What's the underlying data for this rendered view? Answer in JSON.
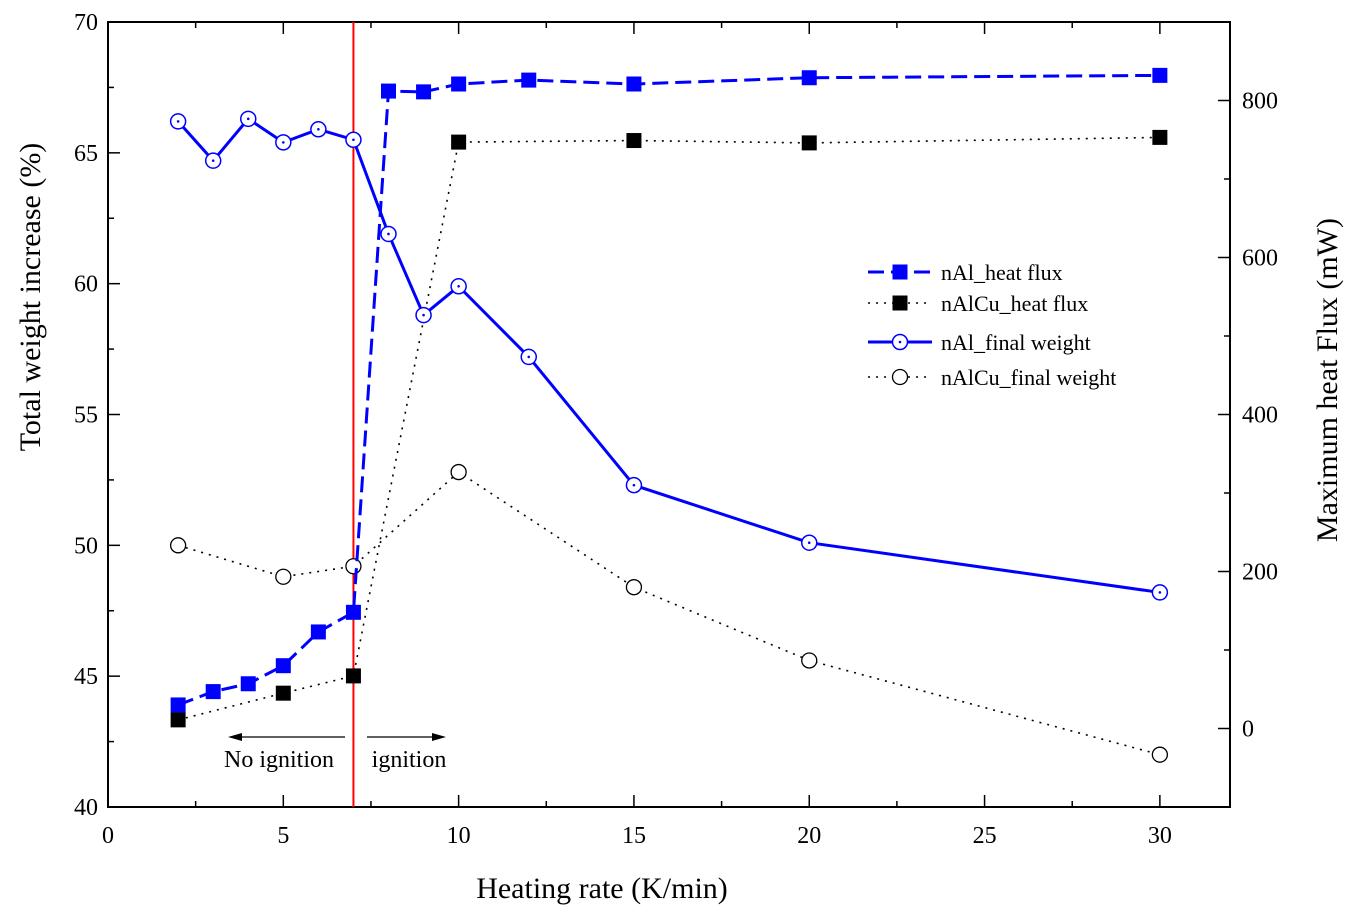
{
  "chart_data": {
    "type": "line",
    "title": "",
    "xlabel": "Heating rate (K/min)",
    "ylabel_left": "Total weight increase (%)",
    "ylabel_right": "Maximum heat Flux (mW)",
    "xlim": [
      0,
      32
    ],
    "ylim_left": [
      40,
      70
    ],
    "ylim_right": [
      -100,
      900
    ],
    "x_ticks": [
      "0",
      "5",
      "10",
      "15",
      "20",
      "25",
      "30"
    ],
    "x_tick_values": [
      0,
      5,
      10,
      15,
      20,
      25,
      30
    ],
    "y_left_ticks": [
      "40",
      "45",
      "50",
      "55",
      "60",
      "65",
      "70"
    ],
    "y_left_tick_values": [
      40,
      45,
      50,
      55,
      60,
      65,
      70
    ],
    "y_right_ticks": [
      "0",
      "200",
      "400",
      "600",
      "800"
    ],
    "y_right_tick_values": [
      0,
      200,
      400,
      600,
      800
    ],
    "grid": false,
    "legend_position": "upper-right",
    "series": [
      {
        "name": "nAl_heat flux",
        "axis": "right",
        "color": "#0000ff",
        "line": "dash",
        "marker": "filled-square",
        "x": [
          2,
          3,
          4,
          5,
          6,
          7,
          8,
          9,
          10,
          12,
          15,
          20,
          30
        ],
        "y": [
          30,
          47,
          57,
          80,
          123,
          148,
          812,
          811,
          821,
          826,
          821,
          829,
          832
        ]
      },
      {
        "name": "nAlCu_heat flux",
        "axis": "right",
        "color": "#000000",
        "line": "dot",
        "marker": "filled-square",
        "x": [
          2,
          5,
          7,
          10,
          15,
          20,
          30
        ],
        "y": [
          11,
          45,
          67,
          747,
          749,
          746,
          753
        ]
      },
      {
        "name": "nAl_final weight",
        "axis": "left",
        "color": "#0000ff",
        "line": "solid",
        "marker": "open-circle-dot",
        "x": [
          2,
          3,
          4,
          5,
          6,
          7,
          8,
          9,
          10,
          12,
          15,
          20,
          30
        ],
        "y": [
          66.2,
          64.7,
          66.3,
          65.4,
          65.9,
          65.5,
          61.9,
          58.8,
          59.9,
          57.2,
          52.3,
          50.1,
          48.2
        ]
      },
      {
        "name": "nAlCu_final weight",
        "axis": "left",
        "color": "#000000",
        "line": "dot",
        "marker": "open-circle",
        "x": [
          2,
          5,
          7,
          10,
          15,
          20,
          30
        ],
        "y": [
          50.0,
          48.8,
          49.2,
          52.8,
          48.4,
          45.6,
          42.0
        ]
      }
    ],
    "annotations": {
      "vline_x": 7,
      "vline_color": "#ff0000",
      "left_arrow_label": "No ignition",
      "right_arrow_label": "ignition"
    }
  }
}
